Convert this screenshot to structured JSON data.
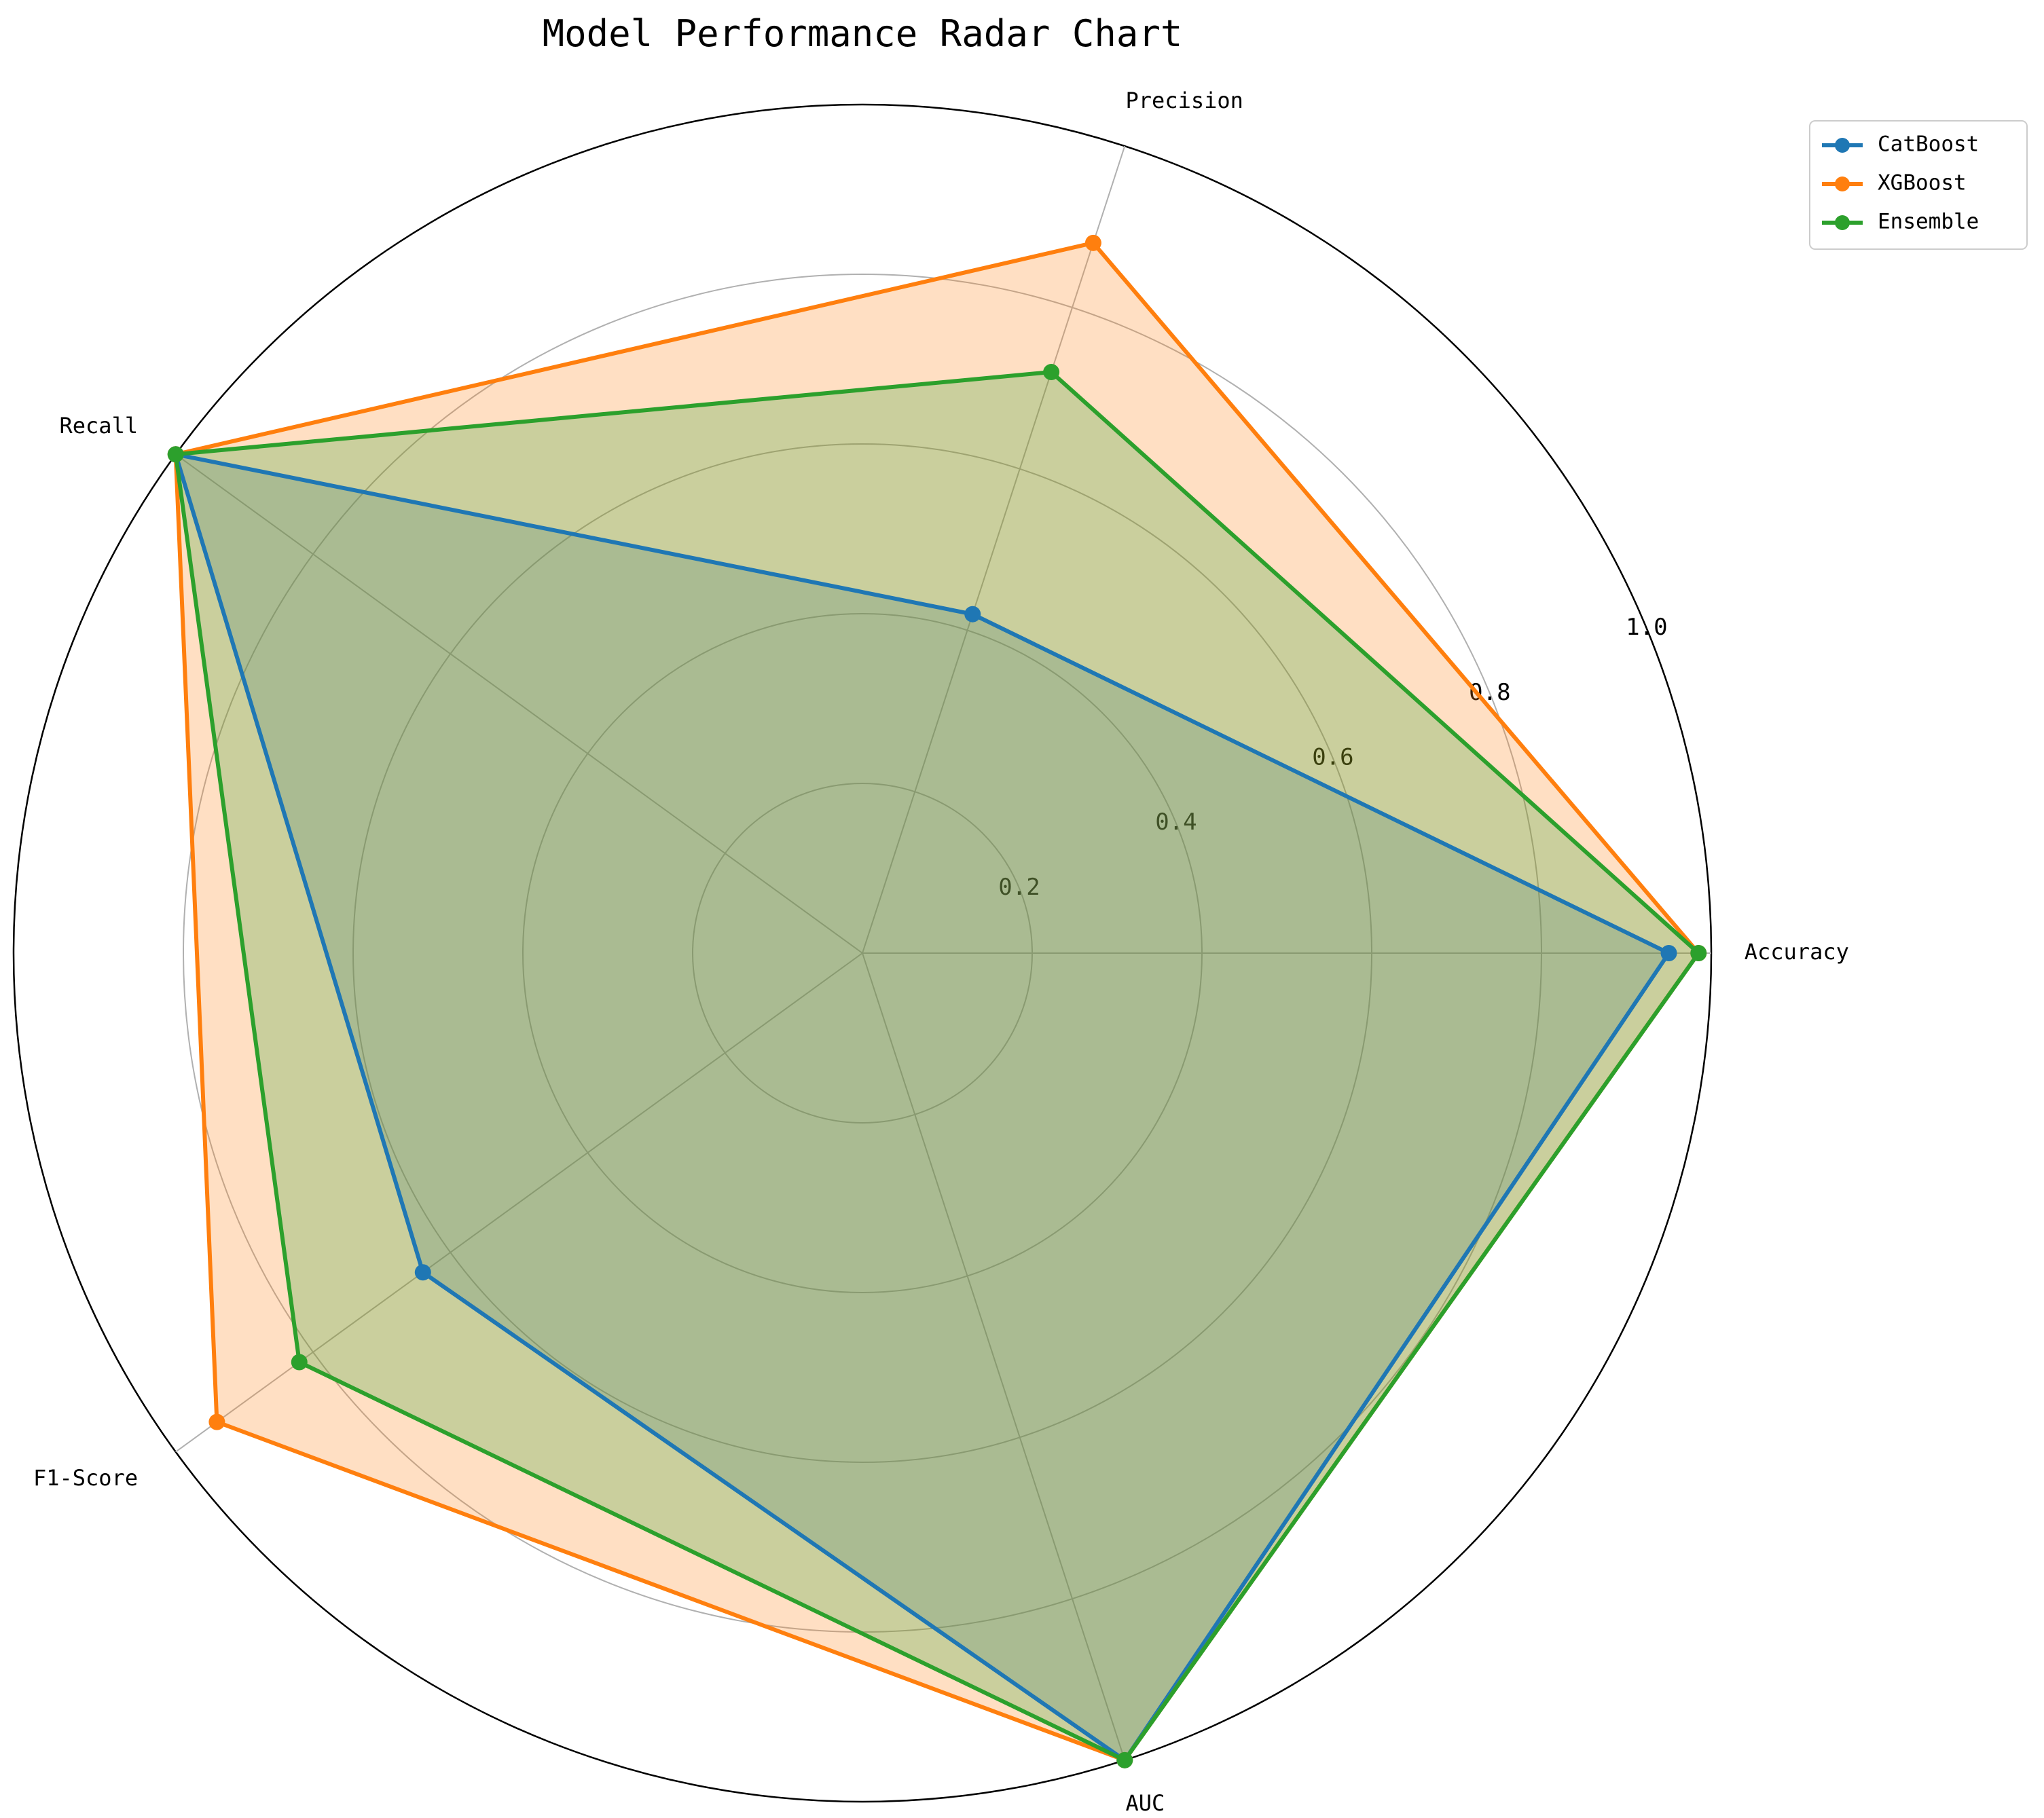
{
  "chart_data": {
    "type": "radar",
    "title": "Model Performance Radar Chart",
    "axes": [
      "Accuracy",
      "Precision",
      "Recall",
      "F1-Score",
      "AUC"
    ],
    "rlim": [
      0,
      1.0
    ],
    "rticks": [
      0.2,
      0.4,
      0.6,
      0.8,
      1.0
    ],
    "rtick_labels": [
      "0.2",
      "0.4",
      "0.6",
      "0.8",
      "1.0"
    ],
    "grid": true,
    "legend_position": "top-right",
    "series": [
      {
        "name": "CatBoost",
        "color": "#1f77b4",
        "values": [
          0.95,
          0.42,
          1.0,
          0.64,
          1.0
        ]
      },
      {
        "name": "XGBoost",
        "color": "#ff7f0e",
        "values": [
          0.985,
          0.88,
          1.0,
          0.94,
          1.0
        ]
      },
      {
        "name": "Ensemble",
        "color": "#2ca02c",
        "values": [
          0.985,
          0.72,
          1.0,
          0.82,
          1.0
        ]
      }
    ]
  }
}
